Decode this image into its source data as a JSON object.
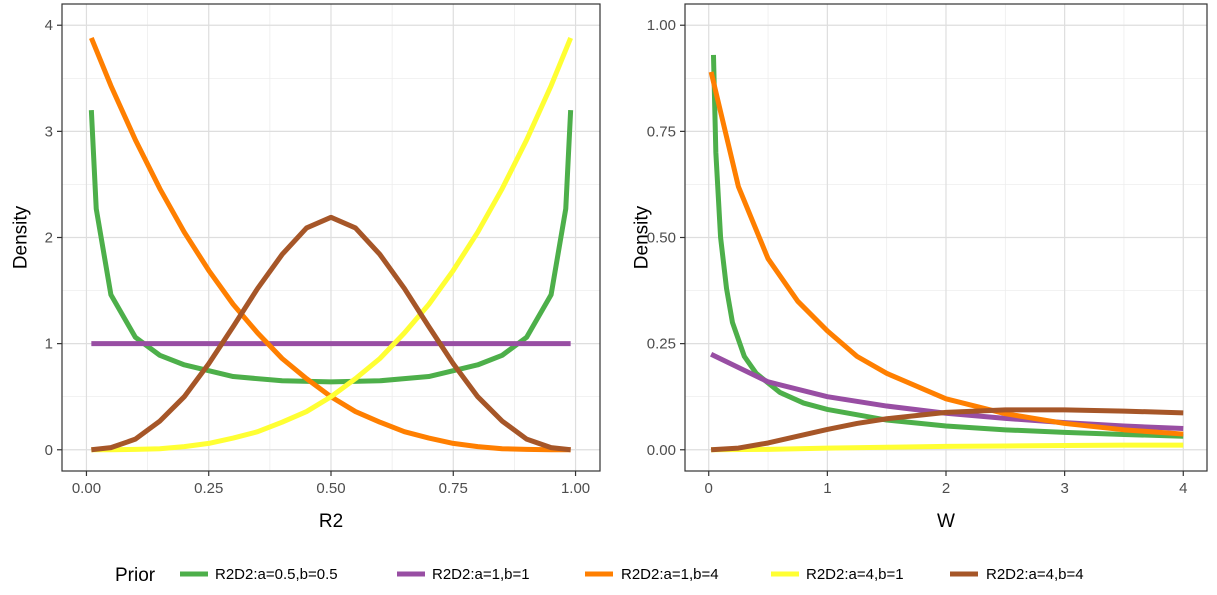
{
  "legend": {
    "title": "Prior",
    "placement": "bottom"
  },
  "series_styles": [
    {
      "name": "R2D2:a=0.5,b=0.5",
      "color": "#4DAF4A"
    },
    {
      "name": "R2D2:a=1,b=1",
      "color": "#984EA3"
    },
    {
      "name": "R2D2:a=1,b=4",
      "color": "#FF7F00"
    },
    {
      "name": "R2D2:a=4,b=1",
      "color": "#FFFF33"
    },
    {
      "name": "R2D2:a=4,b=4",
      "color": "#A65628"
    }
  ],
  "chart_data": [
    {
      "type": "line",
      "xlabel": "R2",
      "ylabel": "Density",
      "xlim": [
        -0.05,
        1.05
      ],
      "ylim": [
        -0.2,
        4.2
      ],
      "xticks": [
        0,
        0.25,
        0.5,
        0.75,
        1
      ],
      "xtick_labels": [
        "0.00",
        "0.25",
        "0.50",
        "0.75",
        "1.00"
      ],
      "yticks": [
        0,
        1,
        2,
        3,
        4
      ],
      "ytick_labels": [
        "0",
        "1",
        "2",
        "3",
        "4"
      ],
      "grid": true,
      "series": [
        {
          "name": "R2D2:a=0.5,b=0.5",
          "x": [
            0.01,
            0.02,
            0.05,
            0.1,
            0.15,
            0.2,
            0.3,
            0.4,
            0.5,
            0.6,
            0.7,
            0.8,
            0.85,
            0.9,
            0.95,
            0.98,
            0.99
          ],
          "y": [
            3.2,
            2.27,
            1.46,
            1.06,
            0.89,
            0.8,
            0.69,
            0.65,
            0.64,
            0.65,
            0.69,
            0.8,
            0.89,
            1.06,
            1.46,
            2.27,
            3.2
          ]
        },
        {
          "name": "R2D2:a=1,b=1",
          "x": [
            0.01,
            0.99
          ],
          "y": [
            1.0,
            1.0
          ]
        },
        {
          "name": "R2D2:a=1,b=4",
          "x": [
            0.01,
            0.05,
            0.1,
            0.15,
            0.2,
            0.25,
            0.3,
            0.35,
            0.4,
            0.45,
            0.5,
            0.55,
            0.6,
            0.65,
            0.7,
            0.75,
            0.8,
            0.85,
            0.9,
            0.95,
            0.99
          ],
          "y": [
            3.88,
            3.43,
            2.92,
            2.46,
            2.05,
            1.69,
            1.37,
            1.1,
            0.86,
            0.67,
            0.5,
            0.36,
            0.26,
            0.17,
            0.11,
            0.06,
            0.03,
            0.01,
            0.004,
            0.0005,
            0.0
          ]
        },
        {
          "name": "R2D2:a=4,b=1",
          "x": [
            0.01,
            0.05,
            0.1,
            0.15,
            0.2,
            0.25,
            0.3,
            0.35,
            0.4,
            0.45,
            0.5,
            0.55,
            0.6,
            0.65,
            0.7,
            0.75,
            0.8,
            0.85,
            0.9,
            0.95,
            0.99
          ],
          "y": [
            0.0,
            0.0005,
            0.004,
            0.01,
            0.03,
            0.06,
            0.11,
            0.17,
            0.26,
            0.36,
            0.5,
            0.67,
            0.86,
            1.1,
            1.37,
            1.69,
            2.05,
            2.46,
            2.92,
            3.43,
            3.88
          ]
        },
        {
          "name": "R2D2:a=4,b=4",
          "x": [
            0.01,
            0.05,
            0.1,
            0.15,
            0.2,
            0.25,
            0.3,
            0.35,
            0.4,
            0.45,
            0.5,
            0.55,
            0.6,
            0.65,
            0.7,
            0.75,
            0.8,
            0.85,
            0.9,
            0.95,
            0.99
          ],
          "y": [
            0.0,
            0.02,
            0.1,
            0.27,
            0.5,
            0.81,
            1.16,
            1.52,
            1.84,
            2.09,
            2.19,
            2.09,
            1.84,
            1.52,
            1.16,
            0.81,
            0.5,
            0.27,
            0.1,
            0.02,
            0.0
          ]
        }
      ]
    },
    {
      "type": "line",
      "xlabel": "W",
      "ylabel": "Density",
      "xlim": [
        -0.2,
        4.2
      ],
      "ylim": [
        -0.05,
        1.05
      ],
      "xticks": [
        0,
        1,
        2,
        3,
        4
      ],
      "xtick_labels": [
        "0",
        "1",
        "2",
        "3",
        "4"
      ],
      "yticks": [
        0,
        0.25,
        0.5,
        0.75,
        1
      ],
      "ytick_labels": [
        "0.00",
        "0.25",
        "0.50",
        "0.75",
        "1.00"
      ],
      "grid": true,
      "series": [
        {
          "name": "R2D2:a=0.5,b=0.5",
          "x": [
            0.04,
            0.06,
            0.1,
            0.15,
            0.2,
            0.3,
            0.4,
            0.6,
            0.8,
            1.0,
            1.5,
            2.0,
            2.5,
            3.0,
            3.5,
            4.0
          ],
          "y": [
            0.93,
            0.7,
            0.5,
            0.38,
            0.3,
            0.22,
            0.18,
            0.135,
            0.11,
            0.095,
            0.07,
            0.056,
            0.047,
            0.041,
            0.036,
            0.032
          ]
        },
        {
          "name": "R2D2:a=1,b=1",
          "x": [
            0.02,
            0.5,
            1.0,
            1.5,
            2.0,
            2.5,
            3.0,
            3.5,
            4.0
          ],
          "y": [
            0.225,
            0.16,
            0.125,
            0.103,
            0.086,
            0.074,
            0.064,
            0.056,
            0.05
          ]
        },
        {
          "name": "R2D2:a=1,b=4",
          "x": [
            0.02,
            0.25,
            0.5,
            0.75,
            1.0,
            1.25,
            1.5,
            2.0,
            2.5,
            3.0,
            3.5,
            4.0
          ],
          "y": [
            0.89,
            0.62,
            0.45,
            0.35,
            0.28,
            0.22,
            0.18,
            0.12,
            0.085,
            0.062,
            0.047,
            0.037
          ]
        },
        {
          "name": "R2D2:a=4,b=1",
          "x": [
            0.02,
            0.5,
            1.0,
            1.5,
            2.0,
            2.5,
            3.0,
            3.5,
            4.0
          ],
          "y": [
            0.0,
            0.001,
            0.004,
            0.006,
            0.008,
            0.009,
            0.01,
            0.011,
            0.011
          ]
        },
        {
          "name": "R2D2:a=4,b=4",
          "x": [
            0.02,
            0.25,
            0.5,
            0.75,
            1.0,
            1.25,
            1.5,
            2.0,
            2.5,
            3.0,
            3.5,
            4.0
          ],
          "y": [
            0.0,
            0.004,
            0.016,
            0.032,
            0.048,
            0.062,
            0.073,
            0.088,
            0.094,
            0.094,
            0.091,
            0.087
          ]
        }
      ]
    }
  ]
}
